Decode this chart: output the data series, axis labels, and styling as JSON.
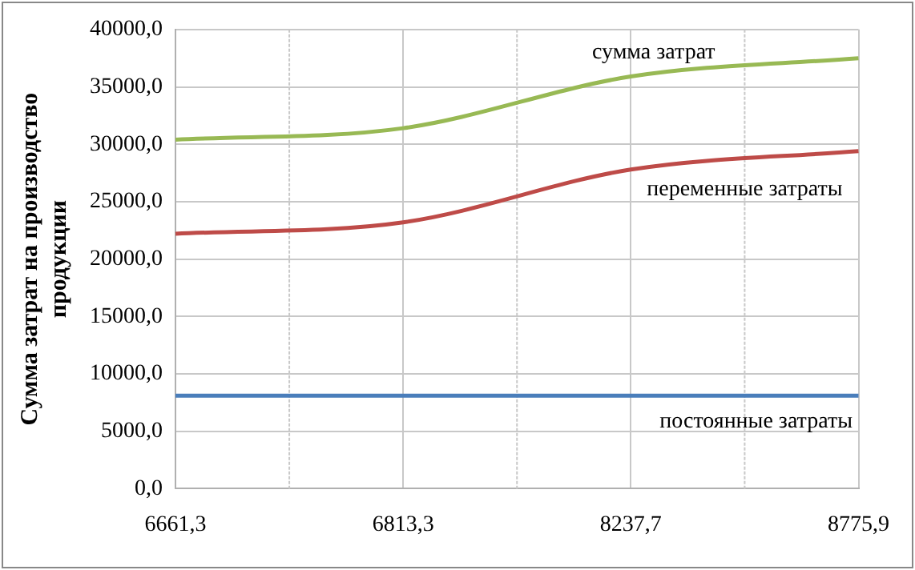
{
  "chart_data": {
    "type": "line",
    "ylabel": "Сумма затрат на производство продукции",
    "categories": [
      "6661,3",
      "6813,3",
      "8237,7",
      "8775,9"
    ],
    "series": [
      {
        "name": "постоянные затраты",
        "color": "#4a7ebb",
        "values": [
          8100,
          8100,
          8100,
          8100
        ]
      },
      {
        "name": "переменные затраты",
        "color": "#be4b48",
        "values": [
          22200,
          23200,
          27800,
          29400
        ]
      },
      {
        "name": "сумма затрат",
        "color": "#98b954",
        "values": [
          30400,
          31400,
          35900,
          37500
        ]
      }
    ],
    "ylim": [
      0,
      40000
    ],
    "yticks": [
      {
        "value": 0,
        "label": "0,0"
      },
      {
        "value": 5000,
        "label": "5000,0"
      },
      {
        "value": 10000,
        "label": "10000,0"
      },
      {
        "value": 15000,
        "label": "15000,0"
      },
      {
        "value": 20000,
        "label": "20000,0"
      },
      {
        "value": 25000,
        "label": "25000,0"
      },
      {
        "value": 30000,
        "label": "30000,0"
      },
      {
        "value": 35000,
        "label": "35000,0"
      },
      {
        "value": 40000,
        "label": "40000,0"
      }
    ],
    "grid": true,
    "legend": false,
    "marker": "none",
    "line_style": "solid"
  }
}
